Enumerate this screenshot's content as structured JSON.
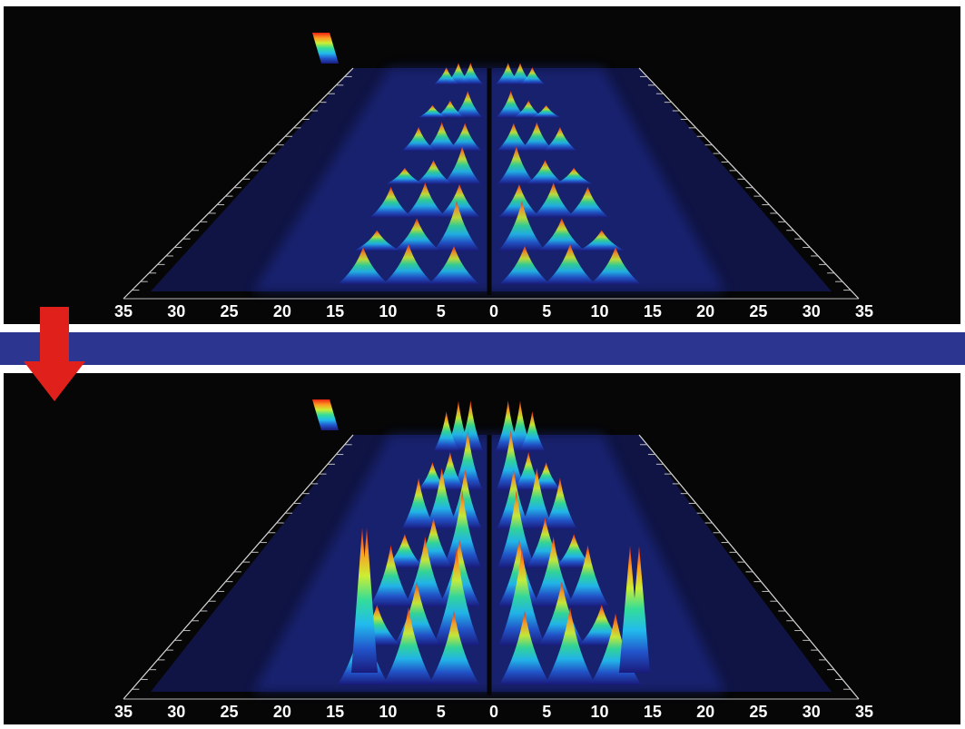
{
  "colors": {
    "background": "#060606",
    "divider": "#2c3590",
    "arrow": "#e0201a",
    "colormap": [
      "#1a1a7a",
      "#2255cc",
      "#22bbee",
      "#33dd99",
      "#ccee33",
      "#ff9922",
      "#ee2211"
    ]
  },
  "chart_data": [
    {
      "type": "surface",
      "panel": "top",
      "x_ticks": [
        "35",
        "30",
        "25",
        "20",
        "15",
        "10",
        "5",
        "0",
        "5",
        "10",
        "15",
        "20",
        "25",
        "30",
        "35"
      ],
      "x_range": [
        -35,
        35
      ],
      "grid": true,
      "colorbar": true,
      "intensity": "low"
    },
    {
      "type": "surface",
      "panel": "bottom",
      "x_ticks": [
        "35",
        "30",
        "25",
        "20",
        "15",
        "10",
        "5",
        "0",
        "5",
        "10",
        "15",
        "20",
        "25",
        "30",
        "35"
      ],
      "x_range": [
        -35,
        35
      ],
      "grid": true,
      "colorbar": true,
      "intensity": "high"
    }
  ],
  "arrow": {
    "icon": "arrow-down-icon"
  }
}
